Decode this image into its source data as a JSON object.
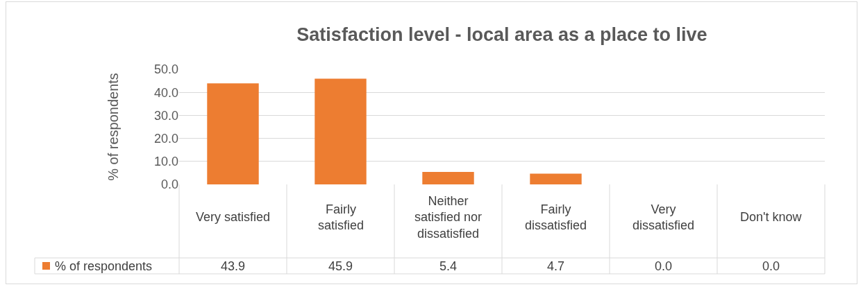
{
  "chart_data": {
    "type": "bar",
    "title": "Satisfaction level - local area as a place to live",
    "ylabel": "% of respondents",
    "categories": [
      "Very satisfied",
      "Fairly satisfied",
      "Neither satisfied nor dissatisfied",
      "Fairly dissatisfied",
      "Very dissatisfied",
      "Don't know"
    ],
    "series": [
      {
        "name": "% of respondents",
        "color": "#ed7d31",
        "values": [
          43.9,
          45.9,
          5.4,
          4.7,
          0.0,
          0.0
        ],
        "value_labels": [
          "43.9",
          "45.9",
          "5.4",
          "4.7",
          "0.0",
          "0.0"
        ]
      }
    ],
    "ylim": [
      0,
      50
    ],
    "yticks": [
      {
        "value": 0,
        "label": "0.0"
      },
      {
        "value": 10,
        "label": "10.0"
      },
      {
        "value": 20,
        "label": "20.0"
      },
      {
        "value": 30,
        "label": "30.0"
      },
      {
        "value": 40,
        "label": "40.0"
      },
      {
        "value": 50,
        "label": "50.0"
      }
    ],
    "grid": "y",
    "legend": "bottom"
  }
}
